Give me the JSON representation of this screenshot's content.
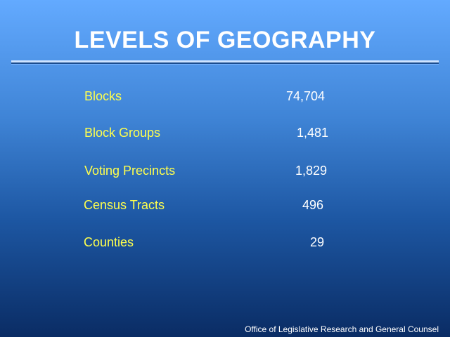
{
  "header": {
    "title": "LEVELS OF GEOGRAPHY"
  },
  "table": {
    "rows": [
      [
        "Blocks",
        "74,704"
      ],
      [
        "Block Groups",
        "1,481"
      ],
      [
        "Voting Precincts",
        "1,829"
      ],
      [
        "Census Tracts",
        "496"
      ],
      [
        "Counties",
        "29"
      ]
    ]
  },
  "footer": {
    "text": "Office of Legislative Research and General Counsel"
  }
}
